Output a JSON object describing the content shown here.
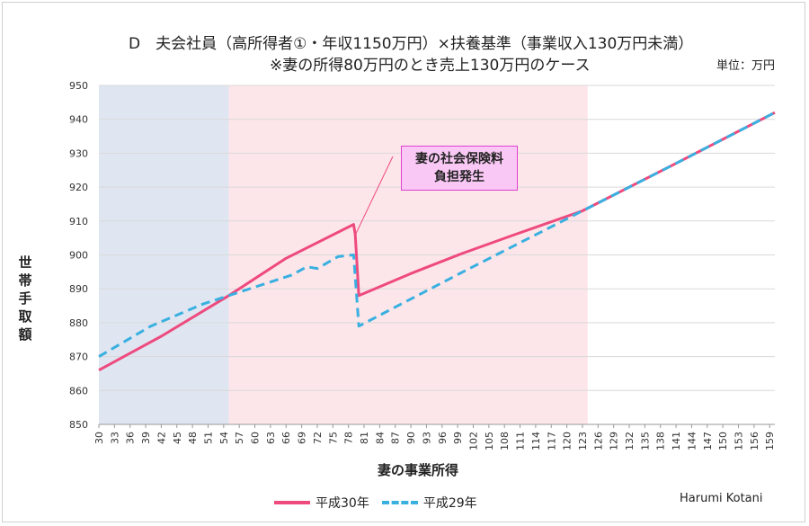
{
  "title_line1": "D　夫会社員（高所得者①・年収1150万円）×扶養基準（事業収入130万円未満）",
  "title_line2": "※妻の所得80万円のとき売上130万円のケース",
  "unit_label": "単位：万円",
  "credit": "Harumi Kotani",
  "colors": {
    "h30": "#ee4a7e",
    "h29": "#3ab0e0",
    "zone1": "#dfe6f1",
    "zone2": "#fde6ea"
  },
  "chart_data": {
    "type": "line",
    "title": "D　夫会社員（高所得者①・年収1150万円）×扶養基準（事業収入130万円未満）",
    "subtitle": "※妻の所得80万円のとき売上130万円のケース",
    "xlabel": "妻の事業所得",
    "ylabel": "世帯手取額",
    "ylim": [
      850,
      950
    ],
    "yticks": [
      850,
      860,
      870,
      880,
      890,
      900,
      910,
      920,
      930,
      940,
      950
    ],
    "xlim": [
      30,
      160
    ],
    "xticks": [
      30,
      33,
      36,
      39,
      42,
      45,
      48,
      51,
      54,
      57,
      60,
      63,
      66,
      69,
      72,
      75,
      78,
      81,
      84,
      87,
      90,
      93,
      96,
      99,
      102,
      105,
      108,
      111,
      114,
      117,
      120,
      123,
      126,
      129,
      132,
      135,
      138,
      141,
      144,
      147,
      150,
      153,
      156,
      159
    ],
    "grid": true,
    "legend_position": "bottom",
    "shaded_regions": [
      {
        "from": 30,
        "to": 55
      },
      {
        "from": 55,
        "to": 124
      }
    ],
    "annotation": {
      "text_line1": "妻の社会保険料",
      "text_line2": "負担発生",
      "points_to_x": 79
    },
    "series": [
      {
        "name": "平成30年",
        "style": "solid",
        "points": [
          [
            30,
            866
          ],
          [
            42,
            876
          ],
          [
            55,
            888
          ],
          [
            66,
            899
          ],
          [
            79,
            909
          ],
          [
            79.3,
            906
          ],
          [
            80,
            888
          ],
          [
            90,
            894.5
          ],
          [
            100,
            900.5
          ],
          [
            110,
            906
          ],
          [
            123,
            913
          ],
          [
            141,
            927
          ],
          [
            160,
            942
          ]
        ]
      },
      {
        "name": "平成29年",
        "style": "dashed",
        "points": [
          [
            30,
            870
          ],
          [
            40,
            879
          ],
          [
            50,
            885.5
          ],
          [
            55,
            888
          ],
          [
            67,
            894
          ],
          [
            70,
            896.5
          ],
          [
            72,
            896
          ],
          [
            76,
            899.5
          ],
          [
            79,
            900
          ],
          [
            80,
            879
          ],
          [
            100,
            895
          ],
          [
            123,
            913
          ],
          [
            141,
            927
          ],
          [
            160,
            942
          ]
        ]
      }
    ]
  }
}
